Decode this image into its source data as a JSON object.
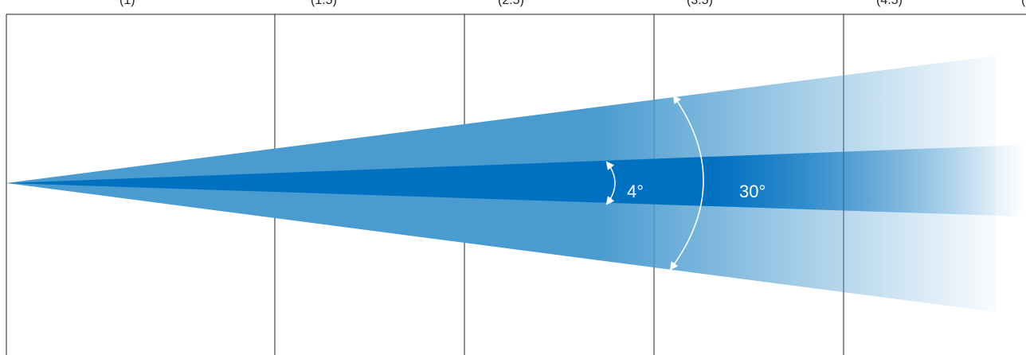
{
  "diagram": {
    "colors": {
      "wide_beam": "#4a9bd0",
      "narrow_beam": "#0070c0",
      "grid_line": "#222222",
      "annotation": "#ffffff",
      "background": "#ffffff"
    },
    "narrow_beam": {
      "angle_label": "4°"
    },
    "wide_beam": {
      "angle_label": "30°"
    },
    "top_labels": [
      "(1)",
      "(1.5)",
      "(2.5)",
      "(3.5)",
      "(4.5)",
      "("
    ]
  }
}
